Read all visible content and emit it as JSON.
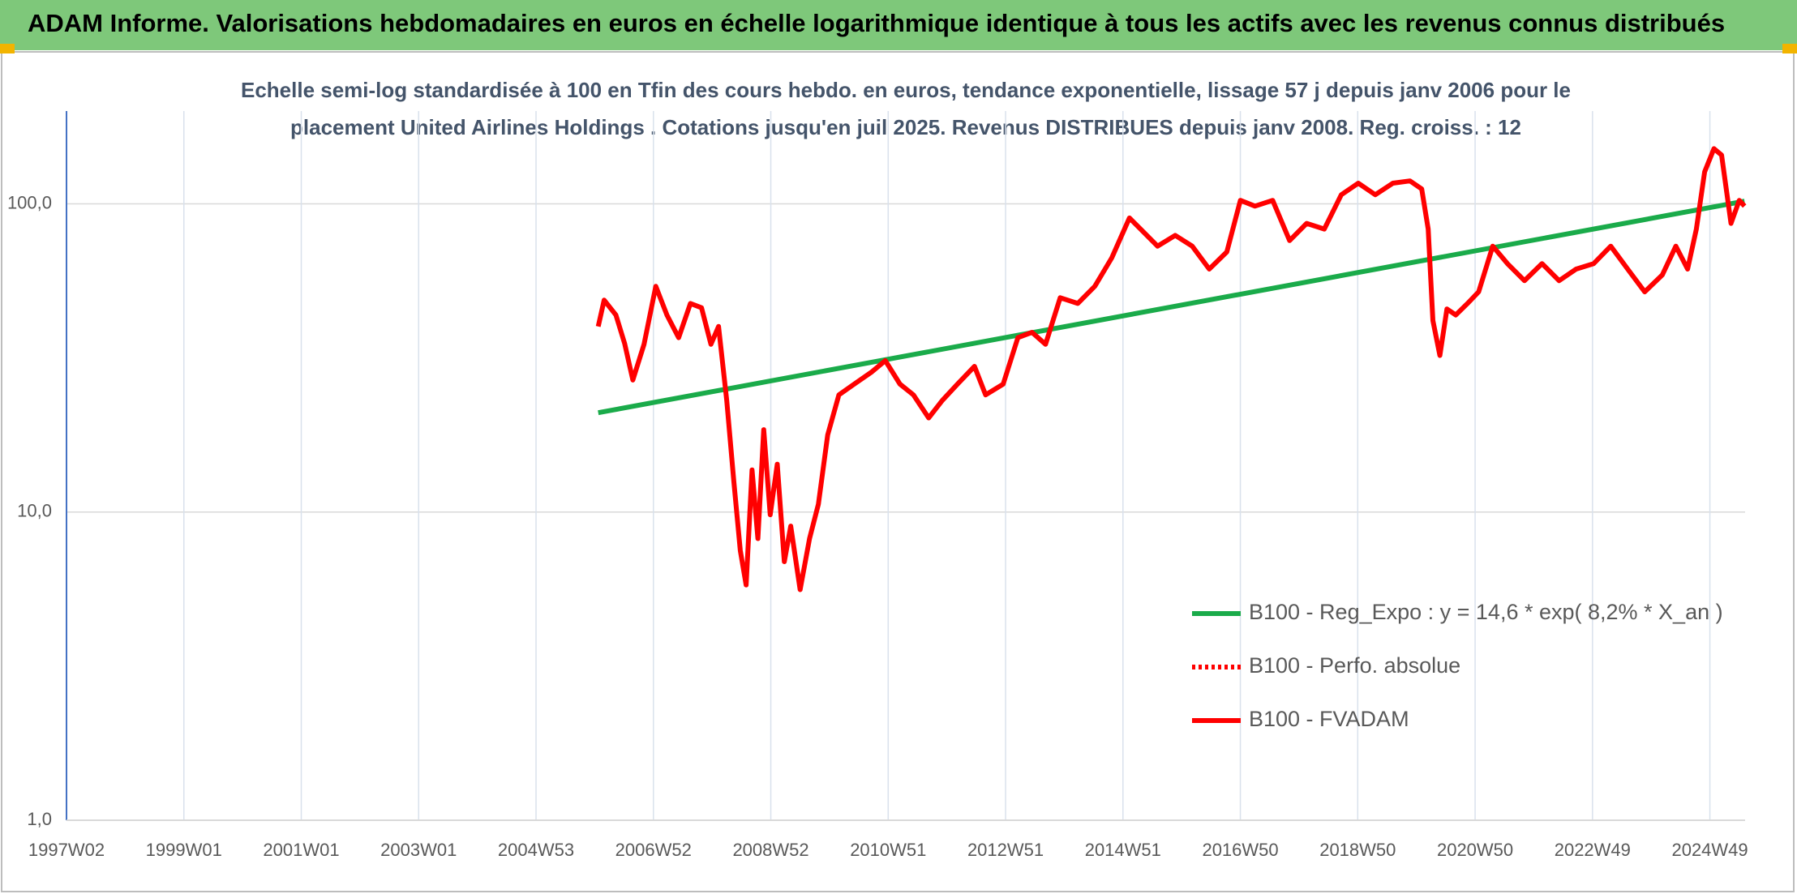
{
  "chart_data": {
    "type": "line",
    "title": "ADAM Informe. Valorisations hebdomadaires en euros en échelle logarithmique identique à tous les actifs avec les revenus connus distribués",
    "subtitle": [
      "Echelle semi-log standardisée à 100 en Tfin des cours hebdo. en euros, tendance exponentielle, lissage 57 j depuis janv 2006 pour le",
      "placement United Airlines Holdings . Cotations jusqu'en juil 2025. Revenus DISTRIBUES depuis janv 2008. Reg. croiss. : 12"
    ],
    "log_scale": true,
    "grid": true,
    "legend_position": "right",
    "xlim": [
      1997.0,
      2025.6
    ],
    "xticks": [
      {
        "value": 1997.0,
        "label": "1997W02"
      },
      {
        "value": 1999.0,
        "label": "1999W01"
      },
      {
        "value": 2001.0,
        "label": "2001W01"
      },
      {
        "value": 2003.0,
        "label": "2003W01"
      },
      {
        "value": 2005.0,
        "label": "2004W53"
      },
      {
        "value": 2007.0,
        "label": "2006W52"
      },
      {
        "value": 2009.0,
        "label": "2008W52"
      },
      {
        "value": 2011.0,
        "label": "2010W51"
      },
      {
        "value": 2013.0,
        "label": "2012W51"
      },
      {
        "value": 2015.0,
        "label": "2014W51"
      },
      {
        "value": 2017.0,
        "label": "2016W50"
      },
      {
        "value": 2019.0,
        "label": "2018W50"
      },
      {
        "value": 2021.0,
        "label": "2020W50"
      },
      {
        "value": 2023.0,
        "label": "2022W49"
      },
      {
        "value": 2025.0,
        "label": "2024W49"
      }
    ],
    "ylim": [
      1,
      200
    ],
    "yticks": [
      {
        "value": 1,
        "label": "1,0"
      },
      {
        "value": 10,
        "label": "10,0"
      },
      {
        "value": 100,
        "label": "100,0"
      }
    ],
    "series": [
      {
        "name": "B100 - Reg_Expo : y = 14,6 * exp( 8,2% *  X_an )",
        "color": "#1aab4a",
        "dash": "solid",
        "x": [
          2006.06,
          2025.59
        ],
        "values": [
          21,
          102
        ]
      },
      {
        "name": "B100 - Perfo. absolue",
        "color": "#ff0000",
        "dash": "dotted",
        "x": [],
        "values": []
      },
      {
        "name": "B100 - FVADAM",
        "color": "#ff0000",
        "dash": "solid",
        "x": [
          2006.06,
          2006.16,
          2006.36,
          2006.51,
          2006.65,
          2006.84,
          2007.04,
          2007.23,
          2007.43,
          2007.63,
          2007.82,
          2007.98,
          2008.11,
          2008.25,
          2008.37,
          2008.48,
          2008.58,
          2008.68,
          2008.78,
          2008.88,
          2008.99,
          2009.11,
          2009.23,
          2009.34,
          2009.5,
          2009.66,
          2009.81,
          2009.97,
          2010.16,
          2010.42,
          2010.71,
          2010.95,
          2011.2,
          2011.43,
          2011.69,
          2011.92,
          2012.18,
          2012.47,
          2012.66,
          2012.96,
          2013.21,
          2013.45,
          2013.68,
          2013.93,
          2014.23,
          2014.52,
          2014.81,
          2015.11,
          2015.3,
          2015.59,
          2015.89,
          2016.18,
          2016.47,
          2016.77,
          2017.0,
          2017.25,
          2017.55,
          2017.84,
          2018.13,
          2018.43,
          2018.72,
          2019.01,
          2019.3,
          2019.6,
          2019.89,
          2020.09,
          2020.2,
          2020.28,
          2020.4,
          2020.52,
          2020.67,
          2020.87,
          2021.06,
          2021.3,
          2021.55,
          2021.84,
          2022.14,
          2022.43,
          2022.72,
          2023.02,
          2023.31,
          2023.6,
          2023.89,
          2024.19,
          2024.42,
          2024.62,
          2024.77,
          2024.91,
          2025.07,
          2025.2,
          2025.36,
          2025.5,
          2025.59
        ],
        "values": [
          40,
          48.7,
          43.6,
          35.2,
          26.8,
          35,
          54,
          43.6,
          36.8,
          47.5,
          46,
          35,
          40,
          23,
          12.6,
          7.5,
          5.8,
          13.7,
          8.2,
          18.5,
          9.8,
          14.3,
          6.9,
          9,
          5.6,
          8.2,
          10.6,
          17.8,
          24,
          26,
          28.4,
          31,
          26,
          24,
          20.2,
          23,
          26,
          29.7,
          24,
          26,
          36.8,
          38.3,
          35,
          49.6,
          47.5,
          54,
          66.8,
          90,
          82.8,
          72.9,
          79,
          72.9,
          61.4,
          69.8,
          102.6,
          98.3,
          102.6,
          76,
          86.4,
          82.8,
          107,
          116.7,
          107,
          116.7,
          118.7,
          111.8,
          82.8,
          41.8,
          32.2,
          45.6,
          43.6,
          47.5,
          51.8,
          72.9,
          64,
          56.3,
          64,
          56.3,
          61.4,
          64,
          72.9,
          61.4,
          51.8,
          58.8,
          72.9,
          61.4,
          82.8,
          127,
          151,
          144,
          86.4,
          102.6,
          98.3
        ]
      }
    ]
  }
}
